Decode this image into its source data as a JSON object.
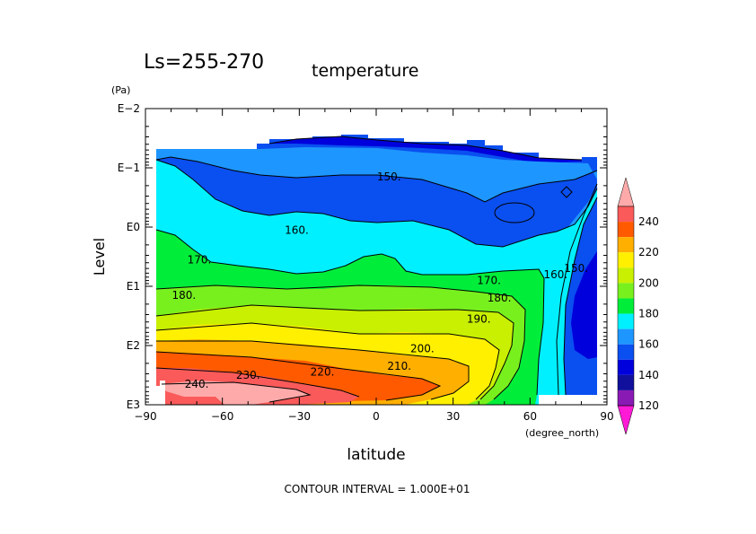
{
  "header": {
    "season": "Ls=255-270",
    "variable": "temperature",
    "y_unit": "(Pa)",
    "x_unit": "(degree_north)",
    "footer": "CONTOUR INTERVAL = 1.000E+01"
  },
  "chart_data": {
    "type": "contour",
    "title": "temperature",
    "subtitle": "Ls=255-270",
    "xlabel": "latitude",
    "ylabel": "Level",
    "x_ticks": [
      "−90",
      "−60",
      "−30",
      "0",
      "30",
      "60",
      "90"
    ],
    "x_tick_values": [
      -90,
      -60,
      -30,
      0,
      30,
      60,
      90
    ],
    "y_ticks": [
      "E−2",
      "E−1",
      "E0",
      "E1",
      "E2",
      "E3"
    ],
    "y_tick_values": [
      -2,
      -1,
      0,
      1,
      2,
      3
    ],
    "y_scale": "log10 pressure (Pa), surface at bottom",
    "xlim": [
      -90,
      90
    ],
    "contour_interval": 10,
    "contour_labels": [
      {
        "text": "150.",
        "lat": 5,
        "level": -0.85
      },
      {
        "text": "160.",
        "lat": -31,
        "level": 0.05
      },
      {
        "text": "170.",
        "lat": -69,
        "level": 0.55
      },
      {
        "text": "180.",
        "lat": -75,
        "level": 1.15
      },
      {
        "text": "170.",
        "lat": 44,
        "level": 0.9
      },
      {
        "text": "180.",
        "lat": 48,
        "level": 1.2
      },
      {
        "text": "190.",
        "lat": 40,
        "level": 1.55
      },
      {
        "text": "200.",
        "lat": 18,
        "level": 2.05
      },
      {
        "text": "210.",
        "lat": 9,
        "level": 2.35
      },
      {
        "text": "220.",
        "lat": -21,
        "level": 2.45
      },
      {
        "text": "230.",
        "lat": -50,
        "level": 2.5
      },
      {
        "text": "240.",
        "lat": -70,
        "level": 2.65
      },
      {
        "text": "160.",
        "lat": 70,
        "level": 0.8
      },
      {
        "text": "150.",
        "lat": 78,
        "level": 0.7
      }
    ],
    "colorbar": {
      "levels": [
        "120",
        "140",
        "160",
        "180",
        "200",
        "220",
        "240"
      ],
      "bins": [
        {
          "range": "<120",
          "color": "#ff1ad6"
        },
        {
          "range": "110-120",
          "color": "#8a1ab4"
        },
        {
          "range": "120-130",
          "color": "#10109c"
        },
        {
          "range": "130-140",
          "color": "#0000dc"
        },
        {
          "range": "140-150",
          "color": "#0a4ff0"
        },
        {
          "range": "150-160",
          "color": "#1e96ff"
        },
        {
          "range": "160-170",
          "color": "#00f0ff"
        },
        {
          "range": "170-180",
          "color": "#00ee3a"
        },
        {
          "range": "180-190",
          "color": "#78f01e"
        },
        {
          "range": "190-200",
          "color": "#c8f000"
        },
        {
          "range": "200-210",
          "color": "#fff000"
        },
        {
          "range": "210-220",
          "color": "#ffaf00"
        },
        {
          "range": "220-230",
          "color": "#ff5a00"
        },
        {
          "range": "230-240",
          "color": "#fa5a5a"
        },
        {
          "range": ">240",
          "color": "#ffaaaa"
        }
      ]
    },
    "grid": false,
    "legend": "right (colorbar)"
  }
}
